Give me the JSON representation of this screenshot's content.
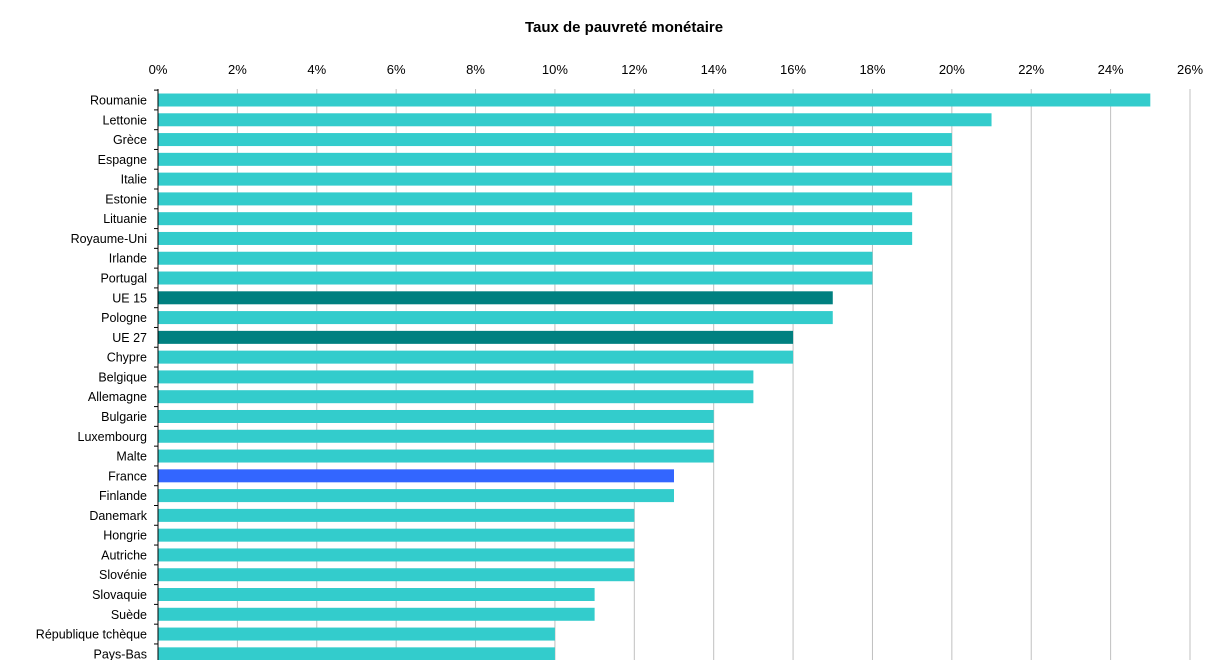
{
  "chart_data": {
    "type": "bar",
    "orientation": "horizontal",
    "title": "Taux de pauvreté monétaire",
    "xlabel": "",
    "ylabel": "",
    "xlim": [
      0,
      26
    ],
    "x_ticks": [
      "0%",
      "2%",
      "4%",
      "6%",
      "8%",
      "10%",
      "12%",
      "14%",
      "16%",
      "18%",
      "20%",
      "22%",
      "24%",
      "26%"
    ],
    "x_axis_position": "top",
    "grid": "vertical",
    "legend": "none",
    "categories": [
      "Roumanie",
      "Lettonie",
      "Grèce",
      "Espagne",
      "Italie",
      "Estonie",
      "Lituanie",
      "Royaume-Uni",
      "Irlande",
      "Portugal",
      "UE 15",
      "Pologne",
      "UE 27",
      "Chypre",
      "Belgique",
      "Allemagne",
      "Bulgarie",
      "Luxembourg",
      "Malte",
      "France",
      "Finlande",
      "Danemark",
      "Hongrie",
      "Autriche",
      "Slovénie",
      "Slovaquie",
      "Suède",
      "République tchèque",
      "Pays-Bas"
    ],
    "values": [
      25,
      21,
      20,
      20,
      20,
      19,
      19,
      19,
      18,
      18,
      17,
      17,
      16,
      16,
      15,
      15,
      14,
      14,
      14,
      13,
      13,
      12,
      12,
      12,
      12,
      11,
      11,
      10,
      10
    ],
    "unit": "%",
    "colors": {
      "default": "#33cccc",
      "UE 15": "#008080",
      "UE 27": "#008080",
      "France": "#3366ff",
      "grid": "#c0c0c0",
      "axis": "#000000"
    }
  }
}
